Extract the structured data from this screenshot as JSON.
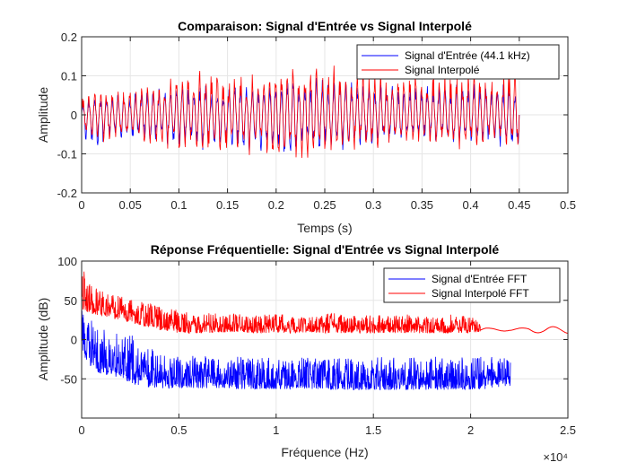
{
  "chart_data": [
    {
      "type": "line",
      "title": "Comparaison: Signal d'Entrée vs Signal Interpolé",
      "xlabel": "Temps (s)",
      "ylabel": "Amplitude",
      "xlim": [
        0,
        0.5
      ],
      "ylim": [
        -0.2,
        0.2
      ],
      "x_ticks": [
        0,
        0.05,
        0.1,
        0.15,
        0.2,
        0.25,
        0.3,
        0.35,
        0.4,
        0.45,
        0.5
      ],
      "x_tick_labels": [
        "0",
        "0.05",
        "0.1",
        "0.15",
        "0.2",
        "0.25",
        "0.3",
        "0.35",
        "0.4",
        "0.45",
        "0.5"
      ],
      "y_ticks": [
        -0.2,
        -0.1,
        0,
        0.1,
        0.2
      ],
      "y_tick_labels": [
        "-0.2",
        "-0.1",
        "0",
        "0.1",
        "0.2"
      ],
      "grid": true,
      "legend_position": "top-right",
      "series": [
        {
          "name": "Signal d'Entrée (44.1 kHz)",
          "color": "#0000ff",
          "x": [
            0,
            0.0125,
            0.025,
            0.0375,
            0.05,
            0.0625,
            0.075,
            0.0875,
            0.1,
            0.1125,
            0.125,
            0.1375,
            0.15,
            0.1625,
            0.175,
            0.1875,
            0.2,
            0.2125,
            0.225,
            0.2375,
            0.25,
            0.2625,
            0.275,
            0.2875,
            0.3,
            0.3125,
            0.325,
            0.3375,
            0.35,
            0.3625,
            0.375,
            0.3875,
            0.4,
            0.4125,
            0.425,
            0.4375,
            0.45
          ],
          "upper": [
            0.04,
            0.05,
            0.05,
            0.07,
            0.06,
            0.07,
            0.07,
            0.07,
            0.08,
            0.08,
            0.09,
            0.07,
            0.08,
            0.09,
            0.09,
            0.09,
            0.1,
            0.1,
            0.11,
            0.1,
            0.09,
            0.09,
            0.09,
            0.08,
            0.08,
            0.08,
            0.08,
            0.08,
            0.08,
            0.08,
            0.08,
            0.08,
            0.09,
            0.08,
            0.08,
            0.08,
            0.07
          ],
          "lower": [
            -0.07,
            -0.08,
            -0.08,
            -0.07,
            -0.08,
            -0.07,
            -0.08,
            -0.08,
            -0.09,
            -0.09,
            -0.1,
            -0.09,
            -0.09,
            -0.09,
            -0.1,
            -0.1,
            -0.11,
            -0.11,
            -0.1,
            -0.1,
            -0.09,
            -0.1,
            -0.09,
            -0.08,
            -0.08,
            -0.08,
            -0.08,
            -0.08,
            -0.07,
            -0.08,
            -0.08,
            -0.08,
            -0.08,
            -0.08,
            -0.08,
            -0.09,
            -0.12
          ]
        },
        {
          "name": "Signal Interpolé",
          "color": "#ff0000",
          "x": [
            0,
            0.0125,
            0.025,
            0.0375,
            0.05,
            0.0625,
            0.075,
            0.0875,
            0.1,
            0.1125,
            0.125,
            0.1375,
            0.15,
            0.1625,
            0.175,
            0.1875,
            0.2,
            0.2125,
            0.225,
            0.2375,
            0.25,
            0.2625,
            0.275,
            0.2875,
            0.3,
            0.3125,
            0.325,
            0.3375,
            0.35,
            0.3625,
            0.375,
            0.3875,
            0.4,
            0.4125,
            0.425,
            0.4375,
            0.45
          ],
          "upper": [
            0.05,
            0.06,
            0.07,
            0.07,
            0.07,
            0.08,
            0.08,
            0.09,
            0.1,
            0.11,
            0.12,
            0.12,
            0.1,
            0.12,
            0.11,
            0.12,
            0.12,
            0.14,
            0.15,
            0.13,
            0.11,
            0.15,
            0.11,
            0.13,
            0.12,
            0.11,
            0.11,
            0.13,
            0.11,
            0.12,
            0.12,
            0.12,
            0.11,
            0.11,
            0.12,
            0.12,
            0.11
          ],
          "lower": [
            -0.06,
            -0.07,
            -0.07,
            -0.08,
            -0.07,
            -0.08,
            -0.08,
            -0.09,
            -0.1,
            -0.1,
            -0.11,
            -0.1,
            -0.1,
            -0.1,
            -0.11,
            -0.1,
            -0.12,
            -0.12,
            -0.13,
            -0.12,
            -0.11,
            -0.1,
            -0.09,
            -0.09,
            -0.09,
            -0.09,
            -0.08,
            -0.09,
            -0.08,
            -0.08,
            -0.08,
            -0.09,
            -0.09,
            -0.08,
            -0.08,
            -0.09,
            -0.1
          ]
        }
      ]
    },
    {
      "type": "line",
      "title": "Réponse Fréquentielle: Signal d'Entrée vs Signal Interpolé",
      "xlabel": "Fréquence (Hz)",
      "ylabel": "Amplitude (dB)",
      "xlim": [
        0,
        25000
      ],
      "ylim": [
        -100,
        100
      ],
      "x_exponent_label": "×10⁴",
      "x_ticks": [
        0,
        5000,
        10000,
        15000,
        20000,
        25000
      ],
      "x_tick_labels": [
        "0",
        "0.5",
        "1",
        "1.5",
        "2",
        "2.5"
      ],
      "y_ticks": [
        -50,
        0,
        50,
        100
      ],
      "y_tick_labels": [
        "-50",
        "0",
        "50",
        "100"
      ],
      "grid": true,
      "legend_position": "top-right",
      "series": [
        {
          "name": "Signal d'Entrée FFT",
          "color": "#0000ff",
          "x": [
            0,
            500,
            1000,
            1500,
            2000,
            2500,
            3000,
            4000,
            5000,
            6000,
            7000,
            8000,
            9000,
            10000,
            11000,
            12000,
            13000,
            14000,
            15000,
            16000,
            17000,
            18000,
            19000,
            20000,
            21000,
            22050
          ],
          "upper": [
            38,
            30,
            22,
            15,
            12,
            10,
            -5,
            -15,
            -20,
            -20,
            -22,
            -22,
            -22,
            -22,
            -22,
            -22,
            -22,
            -22,
            -22,
            -22,
            -22,
            -22,
            -22,
            -22,
            -22,
            -22
          ],
          "lower": [
            -20,
            -35,
            -45,
            -45,
            -50,
            -55,
            -60,
            -62,
            -62,
            -62,
            -62,
            -63,
            -63,
            -63,
            -63,
            -63,
            -64,
            -64,
            -64,
            -64,
            -64,
            -64,
            -64,
            -64,
            -63,
            -60
          ]
        },
        {
          "name": "Signal Interpolé FFT",
          "color": "#ff0000",
          "x": [
            0,
            250,
            500,
            1000,
            1500,
            2000,
            2500,
            3000,
            3500,
            4000,
            5000,
            6000,
            7000,
            8000,
            9000,
            10000,
            11000,
            12000,
            13000,
            14000,
            15000,
            16000,
            17000,
            18000,
            19000,
            20000,
            20500
          ],
          "upper": [
            92,
            85,
            72,
            62,
            58,
            55,
            52,
            50,
            46,
            42,
            38,
            35,
            33,
            33,
            31,
            33,
            31,
            30,
            35,
            30,
            32,
            30,
            33,
            28,
            32,
            30,
            25
          ],
          "lower": [
            40,
            35,
            33,
            30,
            28,
            25,
            22,
            18,
            15,
            12,
            8,
            8,
            9,
            10,
            8,
            9,
            8,
            9,
            8,
            8,
            8,
            9,
            8,
            8,
            8,
            8,
            10
          ],
          "tail_x": [
            20500,
            21000,
            22000,
            23000,
            24000,
            25000
          ],
          "tail_y": [
            12,
            11,
            18,
            9,
            18,
            10
          ]
        }
      ]
    }
  ]
}
